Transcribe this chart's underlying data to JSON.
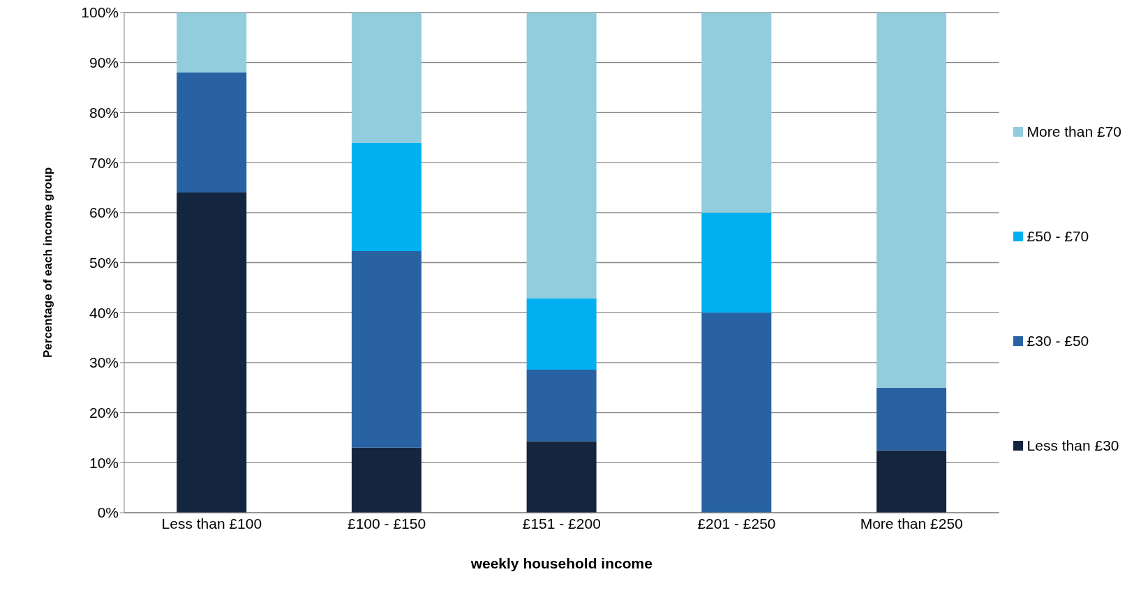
{
  "chart_data": {
    "type": "bar",
    "stacked": true,
    "xlabel": "weekly household income",
    "ylabel": "Percentage of each income group",
    "categories": [
      "Less than £100",
      "£100 - £150",
      "£151 - £200",
      "£201 - £250",
      "More than £250"
    ],
    "series": [
      {
        "name": "Less than £30",
        "color": "#14263f",
        "values": [
          64,
          13,
          14.3,
          0,
          12.5
        ]
      },
      {
        "name": "£30 - £50",
        "color": "#2862a3",
        "values": [
          24,
          39.3,
          14.3,
          40,
          12.5
        ]
      },
      {
        "name": "£50 - £70",
        "color": "#00b0f0",
        "values": [
          0,
          21.7,
          14.3,
          20,
          0
        ]
      },
      {
        "name": "More than £70",
        "color": "#92cddd",
        "values": [
          12,
          26,
          57.1,
          40,
          75
        ]
      }
    ],
    "ylim": [
      0,
      100
    ],
    "yticks": [
      {
        "value": 0,
        "label": "0%"
      },
      {
        "value": 10,
        "label": "10%"
      },
      {
        "value": 20,
        "label": "20%"
      },
      {
        "value": 30,
        "label": "30%"
      },
      {
        "value": 40,
        "label": "40%"
      },
      {
        "value": 50,
        "label": "50%"
      },
      {
        "value": 60,
        "label": "60%"
      },
      {
        "value": 70,
        "label": "70%"
      },
      {
        "value": 80,
        "label": "80%"
      },
      {
        "value": 90,
        "label": "90%"
      },
      {
        "value": 100,
        "label": "100%"
      }
    ],
    "grid": "y",
    "legend": "right"
  }
}
